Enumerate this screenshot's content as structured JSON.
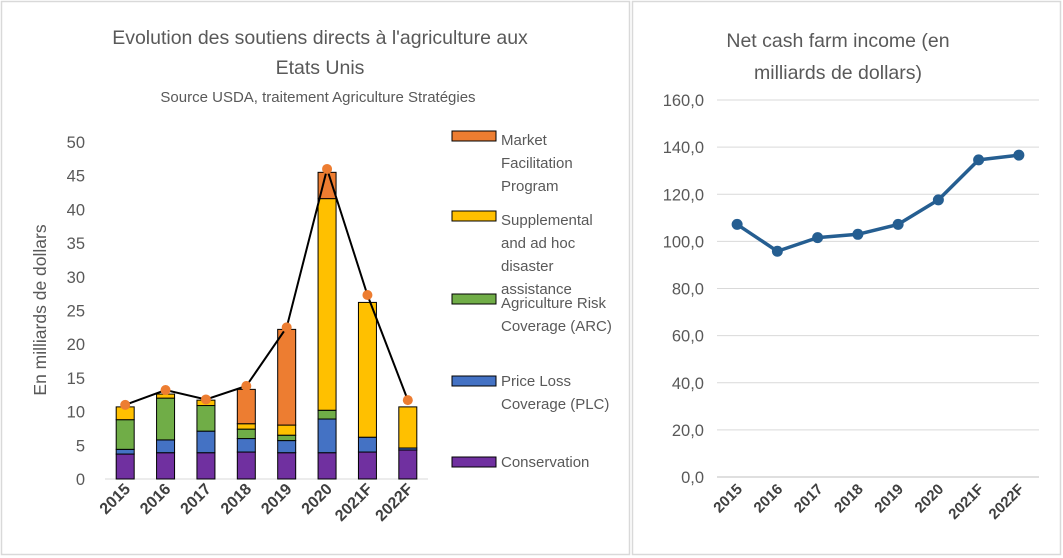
{
  "chart_data": [
    {
      "type": "bar",
      "stacked": true,
      "title": "Evolution des soutiens directs à l'agriculture aux Etats Unis",
      "title_lines": [
        "Evolution des soutiens directs à l'agriculture aux",
        "Etats Unis"
      ],
      "subtitle": "Source USDA, traitement Agriculture Stratégies",
      "ylabel": "En milliards de dollars",
      "ylim": [
        0,
        50
      ],
      "yticks": [
        "0",
        "5",
        "10",
        "15",
        "20",
        "25",
        "30",
        "35",
        "40",
        "45",
        "50"
      ],
      "categories": [
        "2015",
        "2016",
        "2017",
        "2018",
        "2019",
        "2020",
        "2021F",
        "2022F"
      ],
      "legend_position": "right",
      "legend_entries": [
        {
          "label_lines": [
            "Market",
            "Facilitation",
            "Program"
          ],
          "color": "#ED7D31"
        },
        {
          "label_lines": [
            "Supplemental",
            "and ad hoc",
            "disaster",
            "assistance"
          ],
          "color": "#FFC000"
        },
        {
          "label_lines": [
            "Agriculture Risk",
            "Coverage (ARC)"
          ],
          "color": "#70AD47"
        },
        {
          "label_lines": [
            "Price Loss",
            "Coverage (PLC)"
          ],
          "color": "#4472C4"
        },
        {
          "label_lines": [
            "Conservation"
          ],
          "color": "#7030A0"
        }
      ],
      "series": [
        {
          "name": "Conservation",
          "color": "#7030A0",
          "values": [
            3.7,
            3.9,
            3.9,
            4.0,
            3.9,
            3.9,
            4.0,
            4.3
          ]
        },
        {
          "name": "Price Loss Coverage (PLC)",
          "color": "#4472C4",
          "values": [
            0.7,
            1.9,
            3.2,
            2.0,
            1.8,
            5.0,
            2.2,
            0.3
          ]
        },
        {
          "name": "Agriculture Risk Coverage (ARC)",
          "color": "#70AD47",
          "values": [
            4.4,
            6.2,
            3.8,
            1.4,
            0.8,
            1.3,
            0.0,
            0.0
          ]
        },
        {
          "name": "Supplemental and ad hoc disaster assistance",
          "color": "#FFC000",
          "values": [
            1.9,
            0.6,
            0.8,
            0.8,
            1.5,
            31.4,
            20.0,
            6.1
          ]
        },
        {
          "name": "Market Facilitation Program",
          "color": "#ED7D31",
          "values": [
            0.0,
            0.0,
            0.0,
            5.1,
            14.2,
            3.9,
            0.0,
            0.0
          ]
        }
      ],
      "total_line": {
        "color": "#000000",
        "marker_color": "#ED7D31",
        "values": [
          11.0,
          13.2,
          11.8,
          13.8,
          22.5,
          46.0,
          27.3,
          11.7
        ]
      }
    },
    {
      "type": "line",
      "title": "Net cash farm income (en milliards de dollars)",
      "title_lines": [
        "Net cash farm income (en",
        "milliards de dollars)"
      ],
      "ylim": [
        0,
        160
      ],
      "yticks": [
        "0,0",
        "20,0",
        "40,0",
        "60,0",
        "80,0",
        "100,0",
        "120,0",
        "140,0",
        "160,0"
      ],
      "categories": [
        "2015",
        "2016",
        "2017",
        "2018",
        "2019",
        "2020",
        "2021F",
        "2022F"
      ],
      "series": [
        {
          "color": "#255E91",
          "values": [
            107.2,
            95.8,
            101.6,
            103.0,
            107.2,
            117.6,
            134.6,
            136.6
          ]
        }
      ]
    }
  ]
}
